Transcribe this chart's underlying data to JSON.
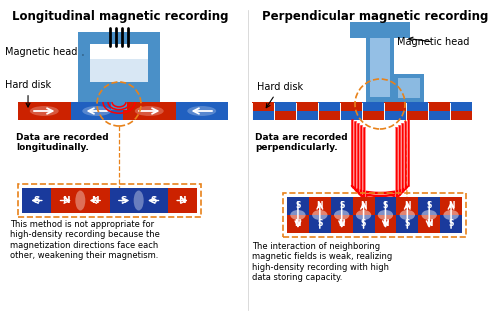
{
  "title_left": "Longitudinal magnetic recording",
  "title_right": "Perpendicular magnetic recording",
  "bg_color": "#ffffff",
  "title_fontsize": 8.5,
  "body_fontsize": 6.0,
  "label_fontsize": 7.0,
  "desc_left": "This method is not appropriate for\nhigh-density recording because the\nmagnetization directions face each\nother, weakening their magnetism.",
  "desc_right": "The interaction of neighboring\nmagnetic fields is weak, realizing\nhigh-density recording with high\ndata storing capacity.",
  "left_caption": "Data are recorded\nlongitudinally.",
  "right_caption": "Data are recorded\nperpendicularly.",
  "orange_dashed": "#E8821A",
  "blue_head_light": "#7DB9E8",
  "blue_head_mid": "#4A90C8",
  "blue_head_dark": "#2E6090",
  "blue_disk": "#2060C0",
  "red_disk": "#CC2200",
  "blue_mag": "#1A3A9C",
  "red_mag": "#CC2200"
}
